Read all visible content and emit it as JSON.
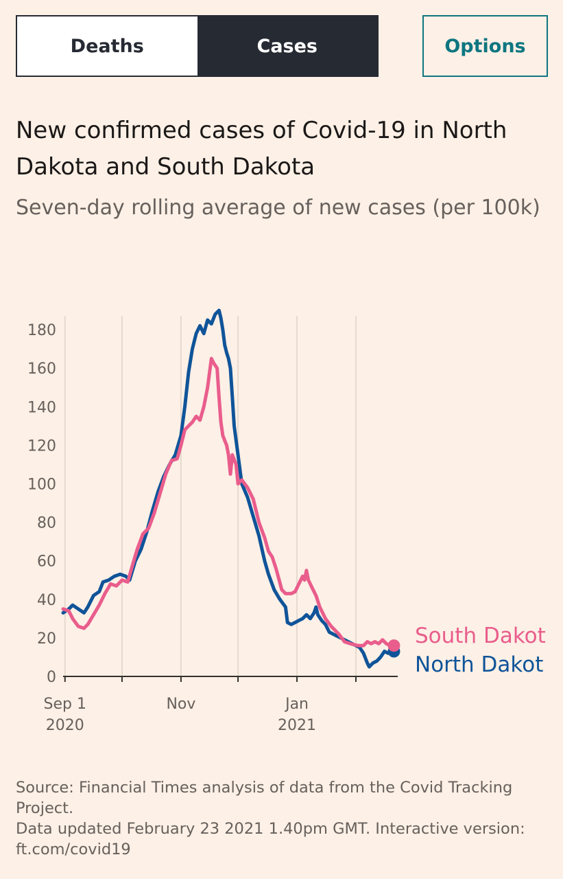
{
  "toggle": {
    "deaths_label": "Deaths",
    "cases_label": "Cases",
    "selected": "Cases"
  },
  "options_label": "Options",
  "header": {
    "title": "New confirmed cases of Covid-19 in North Dakota and South Dakota",
    "subtitle": "Seven-day rolling average of new cases (per 100k)"
  },
  "colors": {
    "south_dakota": "#e95d8c",
    "north_dakota": "#0f5499",
    "gridline": "#e6d9ce",
    "axis": "#33302e"
  },
  "chart_data": {
    "type": "line",
    "title": "New confirmed cases of Covid-19 in North Dakota and South Dakota",
    "ylabel": "Seven-day rolling average of new cases (per 100k)",
    "xlabel": "",
    "x_unit": "days since 2020-08-31",
    "xlim": [
      0,
      176
    ],
    "ylim": [
      0,
      190
    ],
    "yticks": [
      0,
      20,
      40,
      60,
      80,
      100,
      120,
      140,
      160,
      180
    ],
    "xticks": [
      {
        "x": 1,
        "line1": "Sep 1",
        "line2": "2020"
      },
      {
        "x": 31,
        "line1": "",
        "line2": ""
      },
      {
        "x": 62,
        "line1": "Nov",
        "line2": ""
      },
      {
        "x": 92,
        "line1": "",
        "line2": ""
      },
      {
        "x": 123,
        "line1": "Jan",
        "line2": "2021"
      },
      {
        "x": 154,
        "line1": "",
        "line2": ""
      }
    ],
    "series": [
      {
        "name": "North Dakota",
        "label": "North Dakot",
        "color": "#0f5499",
        "points": [
          [
            0,
            33
          ],
          [
            3,
            35
          ],
          [
            5,
            37
          ],
          [
            8,
            35
          ],
          [
            11,
            33
          ],
          [
            13,
            36
          ],
          [
            16,
            42
          ],
          [
            19,
            44
          ],
          [
            21,
            49
          ],
          [
            24,
            50
          ],
          [
            27,
            52
          ],
          [
            30,
            53
          ],
          [
            33,
            52
          ],
          [
            35,
            50
          ],
          [
            38,
            60
          ],
          [
            41,
            66
          ],
          [
            44,
            75
          ],
          [
            47,
            86
          ],
          [
            50,
            96
          ],
          [
            53,
            104
          ],
          [
            56,
            110
          ],
          [
            59,
            115
          ],
          [
            62,
            125
          ],
          [
            64,
            140
          ],
          [
            66,
            158
          ],
          [
            68,
            170
          ],
          [
            70,
            178
          ],
          [
            72,
            182
          ],
          [
            74,
            178
          ],
          [
            76,
            185
          ],
          [
            78,
            183
          ],
          [
            80,
            188
          ],
          [
            82,
            190
          ],
          [
            83,
            186
          ],
          [
            84,
            180
          ],
          [
            85,
            172
          ],
          [
            86,
            168
          ],
          [
            87,
            165
          ],
          [
            88,
            160
          ],
          [
            89,
            145
          ],
          [
            90,
            130
          ],
          [
            92,
            115
          ],
          [
            94,
            100
          ],
          [
            97,
            93
          ],
          [
            100,
            83
          ],
          [
            103,
            73
          ],
          [
            106,
            60
          ],
          [
            108,
            53
          ],
          [
            111,
            45
          ],
          [
            114,
            40
          ],
          [
            117,
            36
          ],
          [
            118,
            28
          ],
          [
            120,
            27
          ],
          [
            122,
            28
          ],
          [
            124,
            29
          ],
          [
            126,
            30
          ],
          [
            128,
            32
          ],
          [
            130,
            30
          ],
          [
            132,
            33
          ],
          [
            133,
            36
          ],
          [
            134,
            32
          ],
          [
            136,
            29
          ],
          [
            138,
            27
          ],
          [
            140,
            23
          ],
          [
            144,
            21
          ],
          [
            148,
            19
          ],
          [
            152,
            17
          ],
          [
            156,
            15
          ],
          [
            158,
            12
          ],
          [
            160,
            7
          ],
          [
            161,
            5
          ],
          [
            163,
            7
          ],
          [
            165,
            8
          ],
          [
            167,
            10
          ],
          [
            169,
            13
          ],
          [
            171,
            12
          ],
          [
            174,
            13
          ]
        ]
      },
      {
        "name": "South Dakota",
        "label": "South Dakot",
        "color": "#e95d8c",
        "points": [
          [
            0,
            35
          ],
          [
            3,
            34
          ],
          [
            5,
            30
          ],
          [
            8,
            26
          ],
          [
            11,
            25
          ],
          [
            13,
            27
          ],
          [
            16,
            32
          ],
          [
            19,
            37
          ],
          [
            22,
            43
          ],
          [
            25,
            48
          ],
          [
            28,
            47
          ],
          [
            31,
            50
          ],
          [
            34,
            49
          ],
          [
            36,
            56
          ],
          [
            39,
            66
          ],
          [
            42,
            74
          ],
          [
            45,
            77
          ],
          [
            48,
            85
          ],
          [
            51,
            95
          ],
          [
            54,
            105
          ],
          [
            57,
            112
          ],
          [
            60,
            113
          ],
          [
            62,
            120
          ],
          [
            64,
            128
          ],
          [
            66,
            130
          ],
          [
            68,
            132
          ],
          [
            70,
            135
          ],
          [
            72,
            133
          ],
          [
            74,
            140
          ],
          [
            76,
            150
          ],
          [
            78,
            165
          ],
          [
            79,
            163
          ],
          [
            81,
            160
          ],
          [
            82,
            145
          ],
          [
            83,
            132
          ],
          [
            84,
            125
          ],
          [
            86,
            120
          ],
          [
            87,
            115
          ],
          [
            88,
            105
          ],
          [
            89,
            115
          ],
          [
            91,
            110
          ],
          [
            92,
            100
          ],
          [
            94,
            102
          ],
          [
            97,
            98
          ],
          [
            100,
            92
          ],
          [
            103,
            80
          ],
          [
            106,
            72
          ],
          [
            108,
            65
          ],
          [
            110,
            62
          ],
          [
            112,
            56
          ],
          [
            115,
            45
          ],
          [
            117,
            43
          ],
          [
            120,
            43
          ],
          [
            122,
            44
          ],
          [
            124,
            48
          ],
          [
            126,
            52
          ],
          [
            127,
            50
          ],
          [
            128,
            55
          ],
          [
            129,
            50
          ],
          [
            131,
            46
          ],
          [
            133,
            42
          ],
          [
            135,
            36
          ],
          [
            138,
            30
          ],
          [
            141,
            26
          ],
          [
            145,
            22
          ],
          [
            148,
            18
          ],
          [
            151,
            17
          ],
          [
            155,
            16
          ],
          [
            158,
            16
          ],
          [
            160,
            18
          ],
          [
            162,
            17
          ],
          [
            164,
            18
          ],
          [
            166,
            17
          ],
          [
            168,
            19
          ],
          [
            170,
            17
          ],
          [
            172,
            16
          ],
          [
            174,
            16
          ]
        ]
      }
    ]
  },
  "source": {
    "line1": "Source: Financial Times analysis of data from the Covid Tracking Project.",
    "line2": "Data updated February 23 2021 1.40pm GMT. Interactive version: ft.com/covid19"
  }
}
